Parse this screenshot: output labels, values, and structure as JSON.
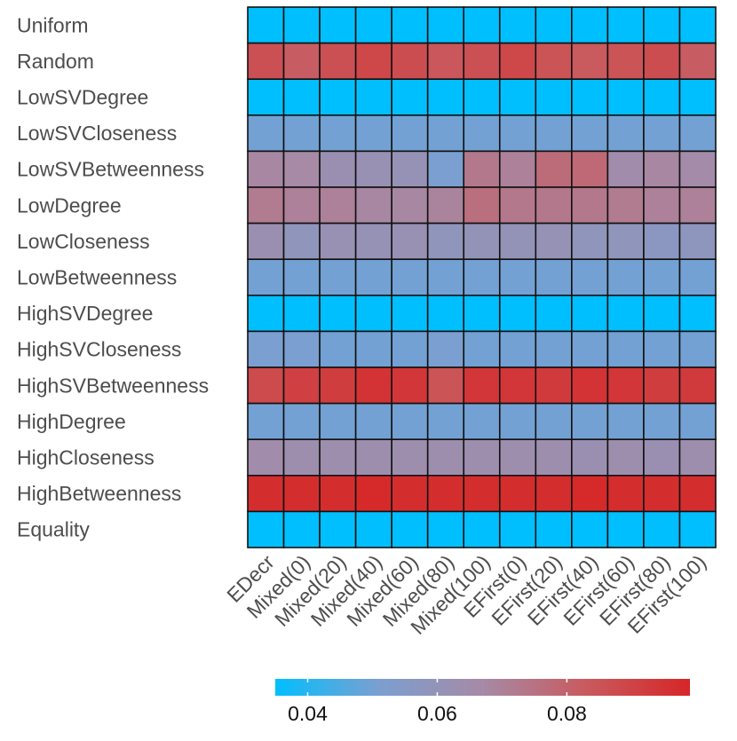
{
  "chart_data": {
    "type": "heatmap",
    "title": "",
    "xlabel": "",
    "ylabel": "",
    "rows": [
      "Uniform",
      "Random",
      "LowSVDegree",
      "LowSVCloseness",
      "LowSVBetweenness",
      "LowDegree",
      "LowCloseness",
      "LowBetweenness",
      "HighSVDegree",
      "HighSVCloseness",
      "HighSVBetweenness",
      "HighDegree",
      "HighCloseness",
      "HighBetweenness",
      "Equality"
    ],
    "columns": [
      "EDecr",
      "Mixed(0)",
      "Mixed(20)",
      "Mixed(40)",
      "Mixed(60)",
      "Mixed(80)",
      "Mixed(100)",
      "EFirst(0)",
      "EFirst(20)",
      "EFirst(40)",
      "EFirst(60)",
      "EFirst(80)",
      "EFirst(100)"
    ],
    "values": [
      [
        0.035,
        0.035,
        0.035,
        0.035,
        0.035,
        0.035,
        0.035,
        0.035,
        0.035,
        0.035,
        0.035,
        0.035,
        0.035
      ],
      [
        0.086,
        0.082,
        0.086,
        0.089,
        0.087,
        0.084,
        0.086,
        0.089,
        0.085,
        0.083,
        0.085,
        0.087,
        0.082
      ],
      [
        0.035,
        0.035,
        0.035,
        0.035,
        0.035,
        0.035,
        0.035,
        0.035,
        0.035,
        0.035,
        0.035,
        0.035,
        0.035
      ],
      [
        0.05,
        0.05,
        0.05,
        0.05,
        0.05,
        0.05,
        0.05,
        0.05,
        0.05,
        0.05,
        0.05,
        0.05,
        0.05
      ],
      [
        0.068,
        0.067,
        0.063,
        0.062,
        0.061,
        0.051,
        0.073,
        0.07,
        0.077,
        0.078,
        0.065,
        0.068,
        0.066
      ],
      [
        0.072,
        0.07,
        0.07,
        0.068,
        0.068,
        0.069,
        0.076,
        0.073,
        0.073,
        0.073,
        0.072,
        0.07,
        0.07
      ],
      [
        0.063,
        0.059,
        0.062,
        0.061,
        0.062,
        0.059,
        0.06,
        0.06,
        0.061,
        0.059,
        0.059,
        0.057,
        0.058
      ],
      [
        0.05,
        0.05,
        0.05,
        0.05,
        0.05,
        0.05,
        0.05,
        0.05,
        0.05,
        0.05,
        0.05,
        0.05,
        0.05
      ],
      [
        0.035,
        0.035,
        0.035,
        0.035,
        0.035,
        0.035,
        0.035,
        0.035,
        0.035,
        0.035,
        0.035,
        0.035,
        0.035
      ],
      [
        0.051,
        0.051,
        0.05,
        0.05,
        0.05,
        0.051,
        0.05,
        0.05,
        0.05,
        0.05,
        0.05,
        0.05,
        0.05
      ],
      [
        0.088,
        0.091,
        0.092,
        0.095,
        0.094,
        0.085,
        0.094,
        0.094,
        0.093,
        0.095,
        0.094,
        0.092,
        0.093
      ],
      [
        0.05,
        0.05,
        0.05,
        0.05,
        0.05,
        0.05,
        0.05,
        0.05,
        0.05,
        0.05,
        0.05,
        0.05,
        0.05
      ],
      [
        0.065,
        0.064,
        0.064,
        0.064,
        0.064,
        0.064,
        0.064,
        0.064,
        0.064,
        0.063,
        0.064,
        0.063,
        0.064
      ],
      [
        0.097,
        0.097,
        0.097,
        0.098,
        0.097,
        0.097,
        0.097,
        0.097,
        0.097,
        0.098,
        0.097,
        0.097,
        0.097
      ],
      [
        0.035,
        0.035,
        0.035,
        0.035,
        0.035,
        0.035,
        0.035,
        0.035,
        0.035,
        0.035,
        0.035,
        0.035,
        0.035
      ]
    ],
    "colorbar": {
      "min": 0.035,
      "max": 0.099,
      "ticks": [
        0.04,
        0.06,
        0.08
      ],
      "tick_labels": [
        "0.04",
        "0.06",
        "0.08"
      ],
      "colors": [
        "#00bfff",
        "#7b9fd0",
        "#a68aa6",
        "#c95a5e",
        "#d62627"
      ]
    },
    "grid": true,
    "legend": "bottom"
  }
}
